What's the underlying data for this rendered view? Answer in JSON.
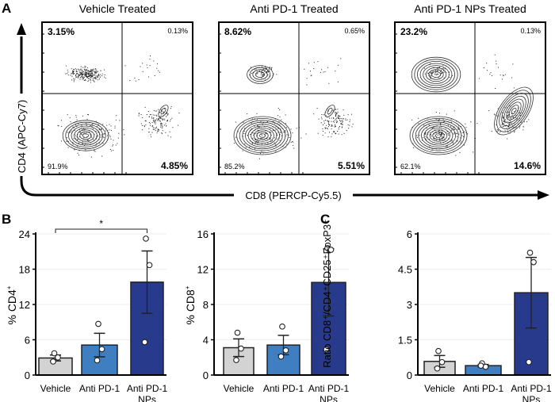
{
  "panel_labels": {
    "a": "A",
    "b": "B",
    "c": "C"
  },
  "flow": {
    "y_axis_label": "CD4 (APC-Cy7)",
    "x_axis_label": "CD8 (PERCP-Cy5.5)",
    "plots": [
      {
        "title": "Vehicle Treated",
        "q_ul": "3.15%",
        "q_ur": "0.13%",
        "q_ll": "91.9%",
        "q_lr": "4.85%",
        "style": "dots"
      },
      {
        "title": "Anti PD-1 Treated",
        "q_ul": "8.62%",
        "q_ur": "0.65%",
        "q_ll": "85.2%",
        "q_lr": "5.51%",
        "style": "contour"
      },
      {
        "title": "Anti PD-1 NPs Treated",
        "q_ul": "23.2%",
        "q_ur": "0.13%",
        "q_ll": "62.1%",
        "q_lr": "14.6%",
        "style": "contour"
      }
    ]
  },
  "colors": {
    "vehicle": "#d3d3d3",
    "anti_pd1": "#3f7fc1",
    "anti_pd1_nps": "#283a8c"
  },
  "chart_data": [
    {
      "type": "bar",
      "panel": "B",
      "ylabel": "% CD4",
      "ylabel_sup": "+",
      "categories": [
        "Vehicle",
        "Anti PD-1",
        "Anti PD-1 NPs"
      ],
      "values": [
        2.9,
        5.1,
        15.8
      ],
      "error": [
        0.5,
        2.0,
        5.3
      ],
      "points": [
        [
          3.7,
          3.0,
          2.3
        ],
        [
          8.7,
          4.4,
          2.5
        ],
        [
          23.2,
          18.7,
          5.6
        ]
      ],
      "ylim": [
        0,
        24
      ],
      "yticks": [
        "0",
        "6",
        "12",
        "18",
        "24"
      ],
      "significance": {
        "from": 0,
        "to": 2,
        "label": "*"
      }
    },
    {
      "type": "bar",
      "panel": "B",
      "ylabel": "% CD8",
      "ylabel_sup": "+",
      "categories": [
        "Vehicle",
        "Anti PD-1",
        "Anti PD-1 NPs"
      ],
      "values": [
        3.1,
        3.4,
        10.5
      ],
      "error": [
        1.0,
        1.1,
        3.8
      ],
      "points": [
        [
          4.8,
          3.0,
          1.7
        ],
        [
          5.5,
          2.8,
          2.1
        ],
        [
          14.4,
          14.2,
          2.9
        ]
      ],
      "ylim": [
        0,
        16
      ],
      "yticks": [
        "0",
        "4",
        "8",
        "12",
        "16"
      ]
    },
    {
      "type": "bar",
      "panel": "C",
      "ylabel": "Ratio CD8⁺/CD4⁺CD25⁺FoxP3⁺",
      "ylabel_sup": "",
      "categories": [
        "Vehicle",
        "Anti PD-1",
        "Anti PD-1 NPs"
      ],
      "values": [
        0.58,
        0.4,
        3.5
      ],
      "error": [
        0.25,
        0.05,
        1.5
      ],
      "points": [
        [
          1.02,
          0.55,
          0.28
        ],
        [
          0.5,
          0.35,
          0.4
        ],
        [
          5.2,
          4.8,
          0.55
        ]
      ],
      "ylim": [
        0,
        6
      ],
      "yticks": [
        "0",
        "1.5",
        "3",
        "4.5",
        "6"
      ]
    }
  ]
}
